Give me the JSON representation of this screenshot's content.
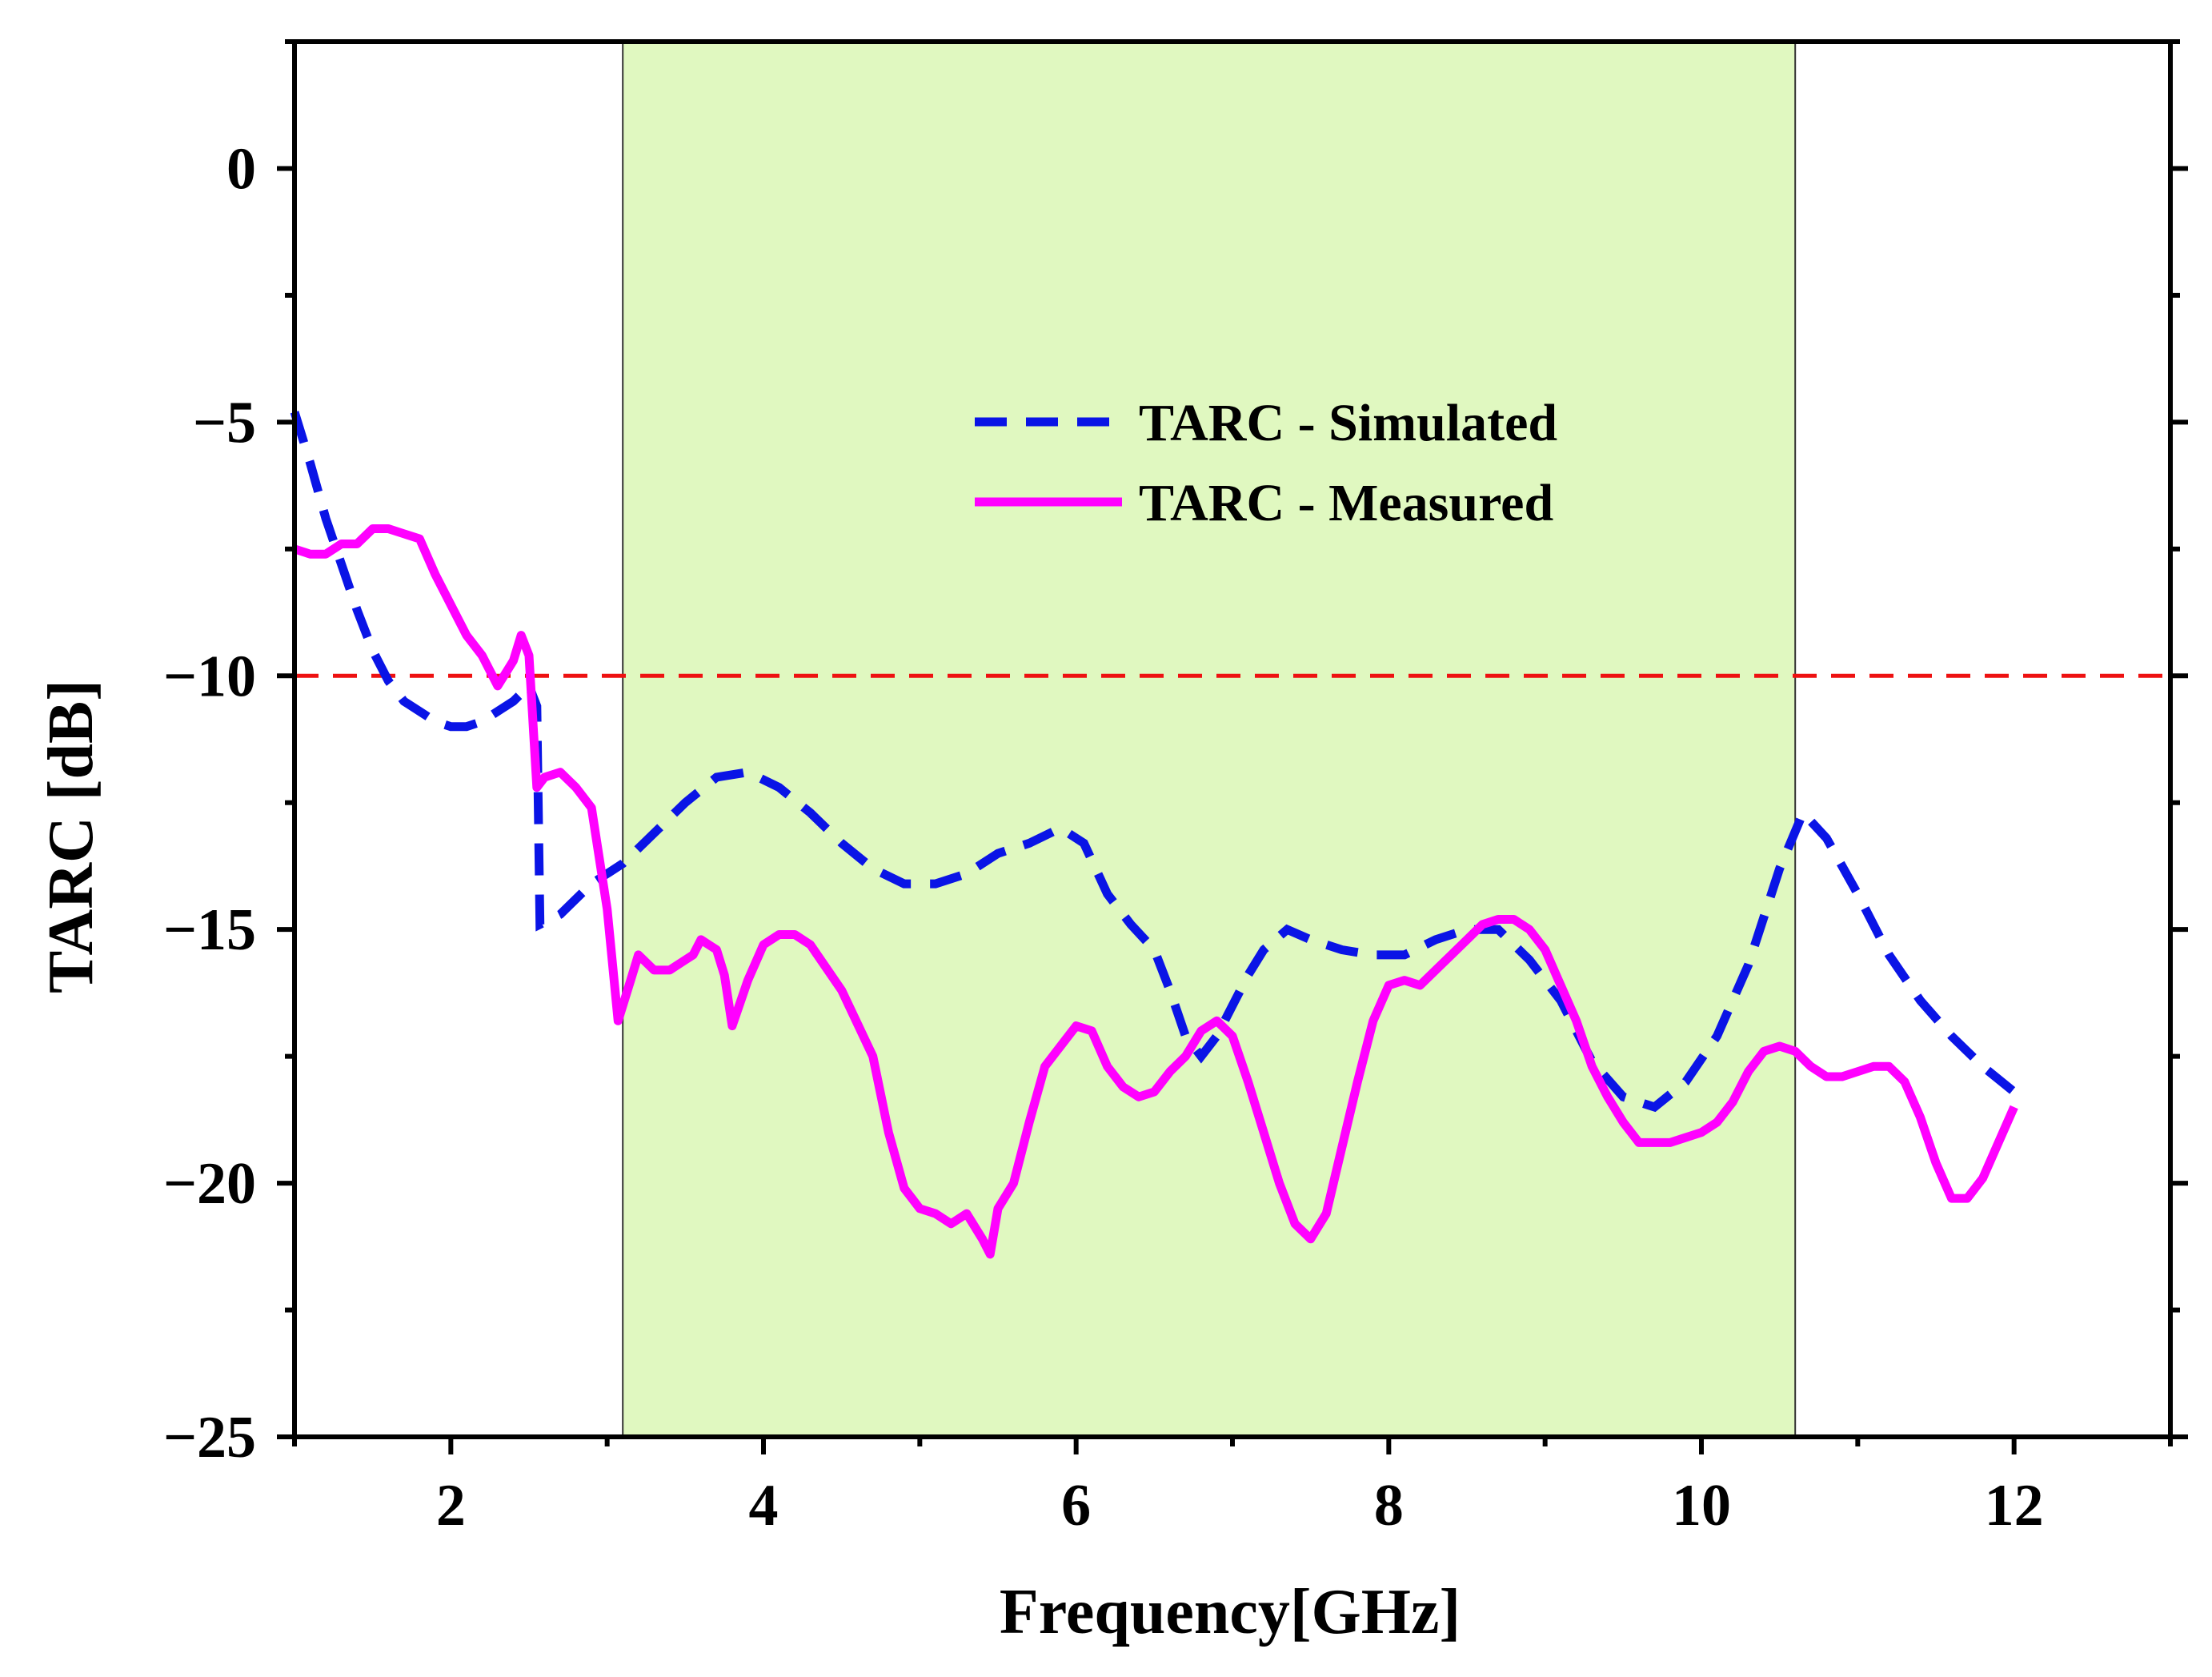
{
  "chart_data": {
    "type": "line",
    "title": "",
    "xlabel": "Frequency[GHz]",
    "ylabel": "TARC [dB]",
    "xlim": [
      1,
      13
    ],
    "ylim": [
      -25,
      2.5
    ],
    "xticks": [
      2,
      4,
      6,
      8,
      10,
      12
    ],
    "xtick_labels": [
      "2",
      "4",
      "6",
      "8",
      "10",
      "12"
    ],
    "yticks": [
      0,
      -5,
      -10,
      -15,
      -20,
      -25
    ],
    "ytick_labels": [
      "0",
      "−5",
      "−10",
      "−15",
      "−20",
      "−25"
    ],
    "grid": false,
    "legend_position": "center",
    "shaded_band": {
      "x_start": 3.1,
      "x_end": 10.6,
      "color": "#e0f8c0"
    },
    "reference_line": {
      "y": -10,
      "color": "#ee1111",
      "style": "dashed"
    },
    "series": [
      {
        "name": "TARC - Simulated",
        "color": "#0a14e6",
        "style": "dashed",
        "points": [
          [
            1.0,
            -4.8
          ],
          [
            1.1,
            -5.8
          ],
          [
            1.2,
            -6.9
          ],
          [
            1.3,
            -7.8
          ],
          [
            1.4,
            -8.7
          ],
          [
            1.5,
            -9.5
          ],
          [
            1.6,
            -10.1
          ],
          [
            1.7,
            -10.5
          ],
          [
            1.8,
            -10.7
          ],
          [
            1.9,
            -10.9
          ],
          [
            2.0,
            -11.0
          ],
          [
            2.1,
            -11.0
          ],
          [
            2.2,
            -10.9
          ],
          [
            2.3,
            -10.7
          ],
          [
            2.4,
            -10.5
          ],
          [
            2.5,
            -10.2
          ],
          [
            2.55,
            -10.6
          ],
          [
            2.57,
            -14.9
          ],
          [
            2.7,
            -14.7
          ],
          [
            2.9,
            -14.1
          ],
          [
            3.1,
            -13.7
          ],
          [
            3.3,
            -13.1
          ],
          [
            3.5,
            -12.5
          ],
          [
            3.7,
            -12.0
          ],
          [
            3.9,
            -11.9
          ],
          [
            4.1,
            -12.2
          ],
          [
            4.3,
            -12.7
          ],
          [
            4.5,
            -13.3
          ],
          [
            4.7,
            -13.8
          ],
          [
            4.9,
            -14.1
          ],
          [
            5.1,
            -14.1
          ],
          [
            5.3,
            -13.9
          ],
          [
            5.5,
            -13.5
          ],
          [
            5.7,
            -13.3
          ],
          [
            5.9,
            -13.0
          ],
          [
            6.05,
            -13.3
          ],
          [
            6.2,
            -14.3
          ],
          [
            6.35,
            -14.9
          ],
          [
            6.5,
            -15.4
          ],
          [
            6.6,
            -16.2
          ],
          [
            6.7,
            -17.1
          ],
          [
            6.8,
            -17.5
          ],
          [
            6.9,
            -17.1
          ],
          [
            7.0,
            -16.5
          ],
          [
            7.1,
            -15.9
          ],
          [
            7.2,
            -15.4
          ],
          [
            7.35,
            -15.0
          ],
          [
            7.5,
            -15.2
          ],
          [
            7.7,
            -15.4
          ],
          [
            7.9,
            -15.5
          ],
          [
            8.1,
            -15.5
          ],
          [
            8.3,
            -15.2
          ],
          [
            8.5,
            -15.0
          ],
          [
            8.7,
            -15.0
          ],
          [
            8.9,
            -15.6
          ],
          [
            9.1,
            -16.4
          ],
          [
            9.3,
            -17.6
          ],
          [
            9.5,
            -18.3
          ],
          [
            9.7,
            -18.5
          ],
          [
            9.9,
            -18.0
          ],
          [
            10.1,
            -17.1
          ],
          [
            10.3,
            -15.7
          ],
          [
            10.5,
            -13.8
          ],
          [
            10.65,
            -12.7
          ],
          [
            10.8,
            -13.2
          ],
          [
            11.0,
            -14.3
          ],
          [
            11.2,
            -15.5
          ],
          [
            11.4,
            -16.4
          ],
          [
            11.6,
            -17.1
          ],
          [
            11.8,
            -17.7
          ],
          [
            12.0,
            -18.2
          ]
        ]
      },
      {
        "name": "TARC - Measured",
        "color": "#ff00ff",
        "style": "solid",
        "points": [
          [
            1.0,
            -7.5
          ],
          [
            1.1,
            -7.6
          ],
          [
            1.2,
            -7.6
          ],
          [
            1.3,
            -7.4
          ],
          [
            1.4,
            -7.4
          ],
          [
            1.5,
            -7.1
          ],
          [
            1.6,
            -7.1
          ],
          [
            1.7,
            -7.2
          ],
          [
            1.8,
            -7.3
          ],
          [
            1.9,
            -8.0
          ],
          [
            2.0,
            -8.6
          ],
          [
            2.1,
            -9.2
          ],
          [
            2.2,
            -9.6
          ],
          [
            2.3,
            -10.2
          ],
          [
            2.4,
            -9.7
          ],
          [
            2.45,
            -9.2
          ],
          [
            2.5,
            -9.6
          ],
          [
            2.55,
            -12.2
          ],
          [
            2.6,
            -12.0
          ],
          [
            2.7,
            -11.9
          ],
          [
            2.8,
            -12.2
          ],
          [
            2.9,
            -12.6
          ],
          [
            3.0,
            -14.6
          ],
          [
            3.07,
            -16.8
          ],
          [
            3.15,
            -16.0
          ],
          [
            3.2,
            -15.5
          ],
          [
            3.3,
            -15.8
          ],
          [
            3.4,
            -15.8
          ],
          [
            3.5,
            -15.6
          ],
          [
            3.55,
            -15.5
          ],
          [
            3.6,
            -15.2
          ],
          [
            3.7,
            -15.4
          ],
          [
            3.75,
            -15.9
          ],
          [
            3.8,
            -16.9
          ],
          [
            3.9,
            -16.0
          ],
          [
            4.0,
            -15.3
          ],
          [
            4.1,
            -15.1
          ],
          [
            4.2,
            -15.1
          ],
          [
            4.3,
            -15.3
          ],
          [
            4.5,
            -16.2
          ],
          [
            4.7,
            -17.5
          ],
          [
            4.8,
            -19.0
          ],
          [
            4.9,
            -20.1
          ],
          [
            5.0,
            -20.5
          ],
          [
            5.1,
            -20.6
          ],
          [
            5.2,
            -20.8
          ],
          [
            5.3,
            -20.6
          ],
          [
            5.4,
            -21.1
          ],
          [
            5.45,
            -21.4
          ],
          [
            5.5,
            -20.5
          ],
          [
            5.6,
            -20.0
          ],
          [
            5.7,
            -18.8
          ],
          [
            5.8,
            -17.7
          ],
          [
            5.9,
            -17.3
          ],
          [
            6.0,
            -16.9
          ],
          [
            6.1,
            -17.0
          ],
          [
            6.2,
            -17.7
          ],
          [
            6.3,
            -18.1
          ],
          [
            6.4,
            -18.3
          ],
          [
            6.5,
            -18.2
          ],
          [
            6.6,
            -17.8
          ],
          [
            6.7,
            -17.5
          ],
          [
            6.8,
            -17.0
          ],
          [
            6.9,
            -16.8
          ],
          [
            7.0,
            -17.1
          ],
          [
            7.1,
            -18.0
          ],
          [
            7.2,
            -19.0
          ],
          [
            7.3,
            -20.0
          ],
          [
            7.4,
            -20.8
          ],
          [
            7.5,
            -21.1
          ],
          [
            7.6,
            -20.6
          ],
          [
            7.7,
            -19.3
          ],
          [
            7.8,
            -18.0
          ],
          [
            7.9,
            -16.8
          ],
          [
            8.0,
            -16.1
          ],
          [
            8.1,
            -16.0
          ],
          [
            8.2,
            -16.1
          ],
          [
            8.3,
            -15.8
          ],
          [
            8.4,
            -15.5
          ],
          [
            8.5,
            -15.2
          ],
          [
            8.6,
            -14.9
          ],
          [
            8.7,
            -14.8
          ],
          [
            8.8,
            -14.8
          ],
          [
            8.9,
            -15.0
          ],
          [
            9.0,
            -15.4
          ],
          [
            9.1,
            -16.1
          ],
          [
            9.2,
            -16.8
          ],
          [
            9.3,
            -17.7
          ],
          [
            9.4,
            -18.3
          ],
          [
            9.5,
            -18.8
          ],
          [
            9.6,
            -19.2
          ],
          [
            9.7,
            -19.2
          ],
          [
            9.8,
            -19.2
          ],
          [
            9.9,
            -19.1
          ],
          [
            10.0,
            -19.0
          ],
          [
            10.1,
            -18.8
          ],
          [
            10.2,
            -18.4
          ],
          [
            10.3,
            -17.8
          ],
          [
            10.4,
            -17.4
          ],
          [
            10.5,
            -17.3
          ],
          [
            10.6,
            -17.4
          ],
          [
            10.7,
            -17.7
          ],
          [
            10.8,
            -17.9
          ],
          [
            10.9,
            -17.9
          ],
          [
            11.0,
            -17.8
          ],
          [
            11.1,
            -17.7
          ],
          [
            11.2,
            -17.7
          ],
          [
            11.3,
            -18.0
          ],
          [
            11.4,
            -18.7
          ],
          [
            11.5,
            -19.6
          ],
          [
            11.6,
            -20.3
          ],
          [
            11.7,
            -20.3
          ],
          [
            11.8,
            -19.9
          ],
          [
            11.9,
            -19.2
          ],
          [
            12.0,
            -18.5
          ]
        ]
      }
    ]
  }
}
